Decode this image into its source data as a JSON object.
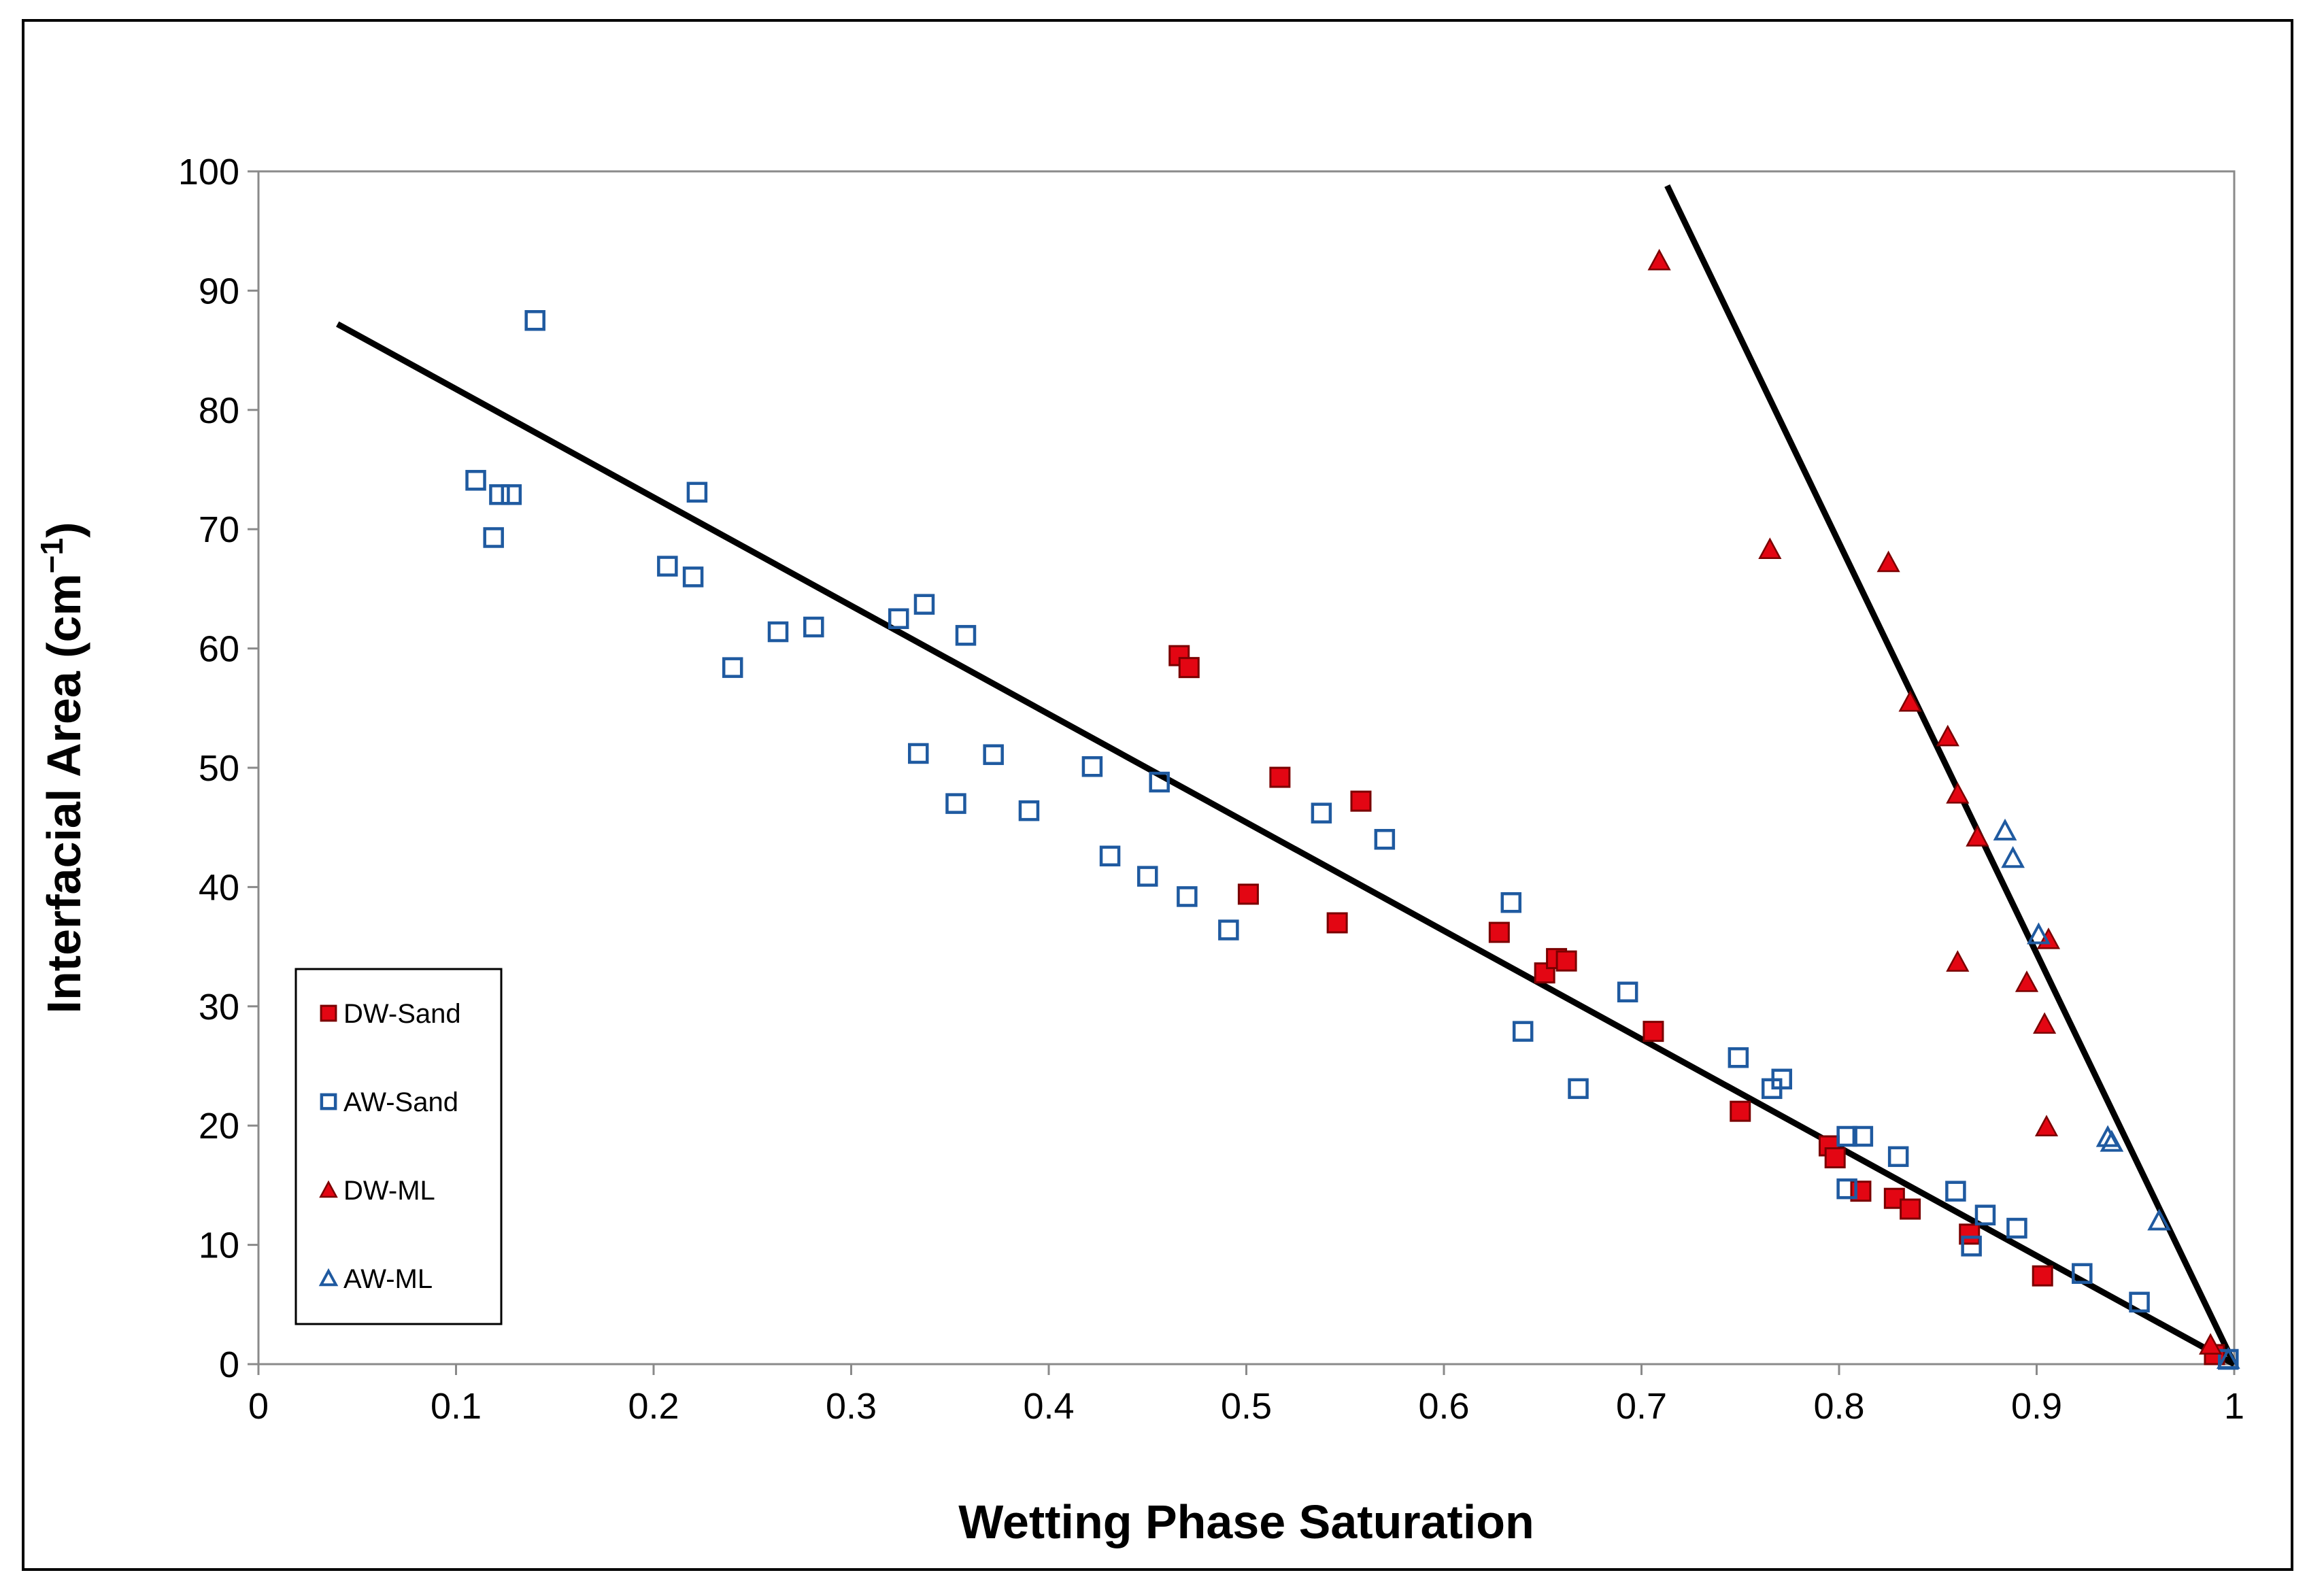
{
  "chart_data": {
    "type": "scatter",
    "title": "",
    "xlabel": "Wetting Phase Saturation",
    "ylabel_main": "Interfacial Area (cm",
    "ylabel_sup": "−1",
    "ylabel_close": ")",
    "xlim": [
      0,
      1
    ],
    "ylim": [
      0,
      100
    ],
    "xticks": [
      "0",
      "0.1",
      "0.2",
      "0.3",
      "0.4",
      "0.5",
      "0.6",
      "0.7",
      "0.8",
      "0.9",
      "1"
    ],
    "yticks": [
      "0",
      "10",
      "20",
      "30",
      "40",
      "50",
      "60",
      "70",
      "80",
      "90",
      "100"
    ],
    "grid": false,
    "legend_position": "bottom-left",
    "colors": {
      "red": "#e30613",
      "blue": "#1f5aa0",
      "black": "#000000"
    },
    "series": [
      {
        "name": "DW-Sand",
        "marker": "filled-square",
        "x": [
          0.466,
          0.471,
          0.517,
          0.558,
          0.501,
          0.546,
          0.628,
          0.651,
          0.657,
          0.662,
          0.706,
          0.75,
          0.795,
          0.798,
          0.811,
          0.828,
          0.836,
          0.866,
          0.903,
          0.99
        ],
        "y": [
          59.4,
          58.4,
          49.2,
          47.2,
          39.4,
          37.0,
          36.2,
          32.8,
          34.0,
          33.8,
          27.9,
          21.2,
          18.3,
          17.3,
          14.5,
          13.9,
          13.0,
          10.9,
          7.4,
          0.8
        ]
      },
      {
        "name": "AW-Sand",
        "marker": "open-square",
        "x": [
          0.14,
          0.11,
          0.122,
          0.128,
          0.119,
          0.222,
          0.207,
          0.22,
          0.24,
          0.263,
          0.281,
          0.324,
          0.337,
          0.358,
          0.334,
          0.353,
          0.372,
          0.39,
          0.422,
          0.431,
          0.456,
          0.45,
          0.47,
          0.491,
          0.538,
          0.57,
          0.634,
          0.64,
          0.668,
          0.693,
          0.749,
          0.766,
          0.771,
          0.804,
          0.812,
          0.804,
          0.83,
          0.859,
          0.874,
          0.867,
          0.89,
          0.923,
          0.952,
          0.997
        ],
        "y": [
          87.5,
          74.1,
          72.9,
          72.9,
          69.3,
          73.1,
          66.9,
          66.0,
          58.4,
          61.4,
          61.8,
          62.5,
          63.7,
          61.1,
          51.2,
          47.0,
          51.1,
          46.4,
          50.1,
          42.6,
          48.8,
          40.9,
          39.2,
          36.4,
          46.2,
          44.0,
          38.7,
          27.9,
          23.1,
          31.2,
          25.7,
          23.1,
          23.9,
          19.1,
          19.1,
          14.7,
          17.4,
          14.5,
          12.5,
          9.9,
          11.4,
          7.6,
          5.2,
          0.4
        ]
      },
      {
        "name": "DW-ML",
        "marker": "filled-triangle",
        "x": [
          0.709,
          0.765,
          0.825,
          0.836,
          0.855,
          0.86,
          0.87,
          0.86,
          0.906,
          0.895,
          0.904,
          0.905,
          0.988
        ],
        "y": [
          92.5,
          68.3,
          67.2,
          55.5,
          52.6,
          47.8,
          44.2,
          33.7,
          35.6,
          32.0,
          28.5,
          19.9,
          1.6
        ]
      },
      {
        "name": "AW-ML",
        "marker": "open-triangle",
        "x": [
          0.884,
          0.888,
          0.901,
          0.936,
          0.938,
          0.962,
          0.997
        ],
        "y": [
          44.7,
          42.4,
          36.0,
          19.0,
          18.6,
          12.0,
          0.4
        ]
      }
    ],
    "trendlines": [
      {
        "name": "sand-fit",
        "x": [
          0.04,
          1.0
        ],
        "y": [
          87.2,
          0.0
        ]
      },
      {
        "name": "ml-fit",
        "x": [
          0.713,
          1.0
        ],
        "y": [
          98.8,
          0.0
        ]
      }
    ]
  }
}
